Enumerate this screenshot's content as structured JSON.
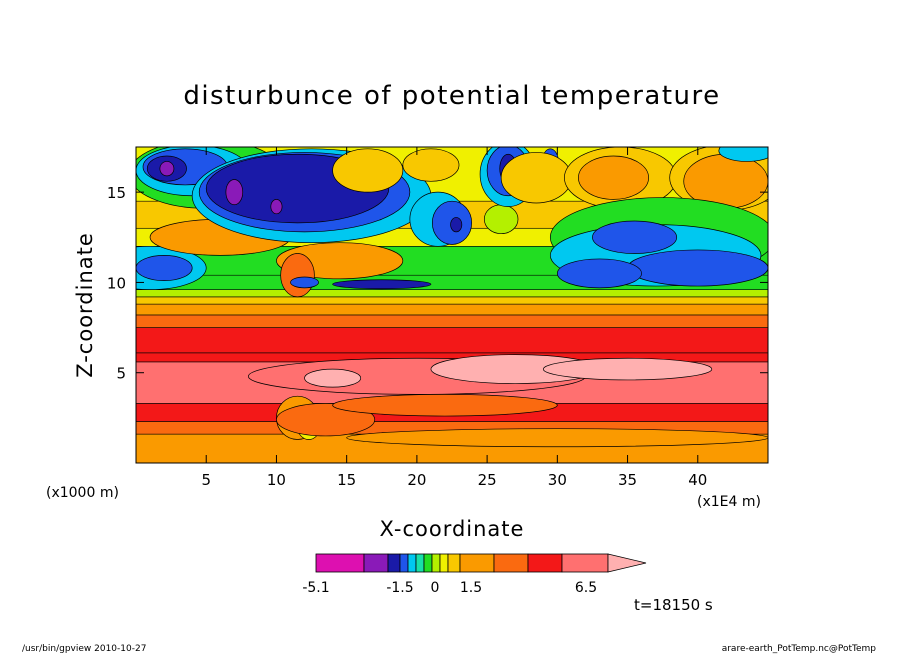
{
  "chart_data": {
    "type": "heatmap",
    "title": "disturbunce of potential temperature",
    "xlabel": "X-coordinate",
    "ylabel": "Z-coordinate",
    "xlim": [
      0,
      45
    ],
    "ylim": [
      0,
      17.5
    ],
    "x_unit_left": "(x1000 m)",
    "x_unit_right": "(x1E4 m)",
    "x_ticks": [
      5,
      10,
      15,
      20,
      25,
      30,
      35,
      40
    ],
    "x_tick_labels": [
      "5",
      "10",
      "15",
      "20",
      "25",
      "30",
      "35",
      "40"
    ],
    "y_ticks": [
      5,
      10,
      15
    ],
    "y_tick_labels": [
      "5",
      "10",
      "15"
    ],
    "colorbar": {
      "colors": [
        "#dd10b0",
        "#8a1ab8",
        "#1a1aa8",
        "#1f55ea",
        "#00c8f0",
        "#18e0a8",
        "#22dd22",
        "#b4f000",
        "#f0f000",
        "#f8c800",
        "#fa9a00",
        "#fa6a10",
        "#f31818",
        "#ff7070",
        "#ffb0b0"
      ],
      "tick_labels": [
        "-5.1",
        "-1.5",
        "0",
        "1.5",
        "6.5"
      ],
      "tick_values": [
        -5.1,
        -1.5,
        0,
        1.5,
        6.5
      ]
    },
    "bands": [
      {
        "z_bottom": 0.0,
        "z_top": 1.6,
        "color": "#fa9a00"
      },
      {
        "z_bottom": 1.6,
        "z_top": 2.3,
        "color": "#fa6a10"
      },
      {
        "z_bottom": 2.3,
        "z_top": 3.3,
        "color": "#f31818"
      },
      {
        "z_bottom": 3.3,
        "z_top": 5.6,
        "color": "#ff7070"
      },
      {
        "z_bottom": 5.6,
        "z_top": 6.1,
        "color": "#f31818"
      },
      {
        "z_bottom": 6.1,
        "z_top": 7.5,
        "color": "#f31818"
      },
      {
        "z_bottom": 7.5,
        "z_top": 8.2,
        "color": "#fa6a10"
      },
      {
        "z_bottom": 8.2,
        "z_top": 8.8,
        "color": "#fa9a00"
      },
      {
        "z_bottom": 8.8,
        "z_top": 9.2,
        "color": "#f8c800"
      },
      {
        "z_bottom": 9.2,
        "z_top": 9.6,
        "color": "#b4f000"
      },
      {
        "z_bottom": 9.6,
        "z_top": 10.4,
        "color": "#22dd22"
      },
      {
        "z_bottom": 10.4,
        "z_top": 12.0,
        "color": "#22dd22"
      },
      {
        "z_bottom": 12.0,
        "z_top": 13.0,
        "color": "#f0f000"
      },
      {
        "z_bottom": 13.0,
        "z_top": 14.5,
        "color": "#f8c800"
      },
      {
        "z_bottom": 14.5,
        "z_top": 17.5,
        "color": "#f0f000"
      }
    ],
    "blobs": [
      {
        "x": 1.0,
        "z": 10.8,
        "rx": 4.0,
        "rz": 1.2,
        "color": "#00c8f0"
      },
      {
        "x": 2.0,
        "z": 10.8,
        "rx": 2.0,
        "rz": 0.7,
        "color": "#1f55ea"
      },
      {
        "x": 6.0,
        "z": 12.5,
        "rx": 5.0,
        "rz": 1.0,
        "color": "#fa9a00"
      },
      {
        "x": 14.5,
        "z": 11.2,
        "rx": 4.5,
        "rz": 1.0,
        "color": "#fa9a00"
      },
      {
        "x": 11.5,
        "z": 10.4,
        "rx": 1.2,
        "rz": 1.2,
        "color": "#fa6a10"
      },
      {
        "x": 5.0,
        "z": 16.0,
        "rx": 5.5,
        "rz": 1.9,
        "color": "#22dd22"
      },
      {
        "x": 4.0,
        "z": 16.2,
        "rx": 4.0,
        "rz": 1.4,
        "color": "#00c8f0"
      },
      {
        "x": 3.5,
        "z": 16.4,
        "rx": 3.0,
        "rz": 1.0,
        "color": "#1f55ea"
      },
      {
        "x": 2.2,
        "z": 16.3,
        "rx": 1.4,
        "rz": 0.7,
        "color": "#1a1aa8"
      },
      {
        "x": 2.2,
        "z": 16.3,
        "rx": 0.5,
        "rz": 0.4,
        "color": "#8a1ab8"
      },
      {
        "x": 12.5,
        "z": 14.8,
        "rx": 8.5,
        "rz": 2.6,
        "color": "#00c8f0"
      },
      {
        "x": 12.0,
        "z": 15.0,
        "rx": 7.5,
        "rz": 2.2,
        "color": "#1f55ea"
      },
      {
        "x": 11.5,
        "z": 15.2,
        "rx": 6.5,
        "rz": 1.9,
        "color": "#1a1aa8"
      },
      {
        "x": 7.0,
        "z": 15.0,
        "rx": 0.6,
        "rz": 0.7,
        "color": "#8a1ab8"
      },
      {
        "x": 10.0,
        "z": 14.2,
        "rx": 0.4,
        "rz": 0.4,
        "color": "#8a1ab8"
      },
      {
        "x": 16.5,
        "z": 16.2,
        "rx": 2.5,
        "rz": 1.2,
        "color": "#f8c800"
      },
      {
        "x": 21.5,
        "z": 13.5,
        "rx": 2.0,
        "rz": 1.5,
        "color": "#00c8f0"
      },
      {
        "x": 22.5,
        "z": 13.3,
        "rx": 1.4,
        "rz": 1.2,
        "color": "#1f55ea"
      },
      {
        "x": 22.8,
        "z": 13.2,
        "rx": 0.4,
        "rz": 0.4,
        "color": "#1a1aa8"
      },
      {
        "x": 21.0,
        "z": 16.5,
        "rx": 2.0,
        "rz": 0.9,
        "color": "#f8c800"
      },
      {
        "x": 26.0,
        "z": 13.5,
        "rx": 1.2,
        "rz": 0.8,
        "color": "#b4f000"
      },
      {
        "x": 26.5,
        "z": 16.0,
        "rx": 2.0,
        "rz": 1.8,
        "color": "#00c8f0"
      },
      {
        "x": 26.5,
        "z": 16.2,
        "rx": 1.5,
        "rz": 1.4,
        "color": "#1f55ea"
      },
      {
        "x": 26.5,
        "z": 16.3,
        "rx": 0.6,
        "rz": 0.8,
        "color": "#1a1aa8"
      },
      {
        "x": 29.5,
        "z": 16.6,
        "rx": 0.6,
        "rz": 0.8,
        "color": "#1f55ea"
      },
      {
        "x": 28.5,
        "z": 15.8,
        "rx": 2.5,
        "rz": 1.4,
        "color": "#f8c800"
      },
      {
        "x": 34.5,
        "z": 15.8,
        "rx": 4.0,
        "rz": 1.7,
        "color": "#f8c800"
      },
      {
        "x": 34.0,
        "z": 15.8,
        "rx": 2.5,
        "rz": 1.2,
        "color": "#fa9a00"
      },
      {
        "x": 42.0,
        "z": 15.8,
        "rx": 4.0,
        "rz": 1.8,
        "color": "#f8c800"
      },
      {
        "x": 42.0,
        "z": 15.6,
        "rx": 3.0,
        "rz": 1.5,
        "color": "#fa9a00"
      },
      {
        "x": 43.5,
        "z": 17.3,
        "rx": 2.0,
        "rz": 0.6,
        "color": "#00c8f0"
      },
      {
        "x": 37.5,
        "z": 12.5,
        "rx": 8.0,
        "rz": 2.2,
        "color": "#22dd22"
      },
      {
        "x": 37.0,
        "z": 11.5,
        "rx": 7.5,
        "rz": 1.7,
        "color": "#00c8f0"
      },
      {
        "x": 40.0,
        "z": 10.8,
        "rx": 5.0,
        "rz": 1.0,
        "color": "#1f55ea"
      },
      {
        "x": 35.5,
        "z": 12.5,
        "rx": 3.0,
        "rz": 0.9,
        "color": "#1f55ea"
      },
      {
        "x": 33.0,
        "z": 10.5,
        "rx": 3.0,
        "rz": 0.8,
        "color": "#1f55ea"
      },
      {
        "x": 17.5,
        "z": 9.9,
        "rx": 3.5,
        "rz": 0.25,
        "color": "#1a1aa8"
      },
      {
        "x": 12.0,
        "z": 10.0,
        "rx": 1.0,
        "rz": 0.3,
        "color": "#1f55ea"
      },
      {
        "x": 20.0,
        "z": 4.8,
        "rx": 12.0,
        "rz": 1.0,
        "color": "#ff7070"
      },
      {
        "x": 27.0,
        "z": 5.2,
        "rx": 6.0,
        "rz": 0.8,
        "color": "#ffb0b0"
      },
      {
        "x": 35.0,
        "z": 5.2,
        "rx": 6.0,
        "rz": 0.6,
        "color": "#ffb0b0"
      },
      {
        "x": 14.0,
        "z": 4.7,
        "rx": 2.0,
        "rz": 0.5,
        "color": "#ffb0b0"
      },
      {
        "x": 11.5,
        "z": 2.5,
        "rx": 1.5,
        "rz": 1.2,
        "color": "#fa9a00"
      },
      {
        "x": 12.3,
        "z": 2.0,
        "rx": 0.8,
        "rz": 0.7,
        "color": "#f0f000"
      },
      {
        "x": 13.5,
        "z": 2.4,
        "rx": 3.5,
        "rz": 0.9,
        "color": "#fa6a10"
      },
      {
        "x": 22.0,
        "z": 3.2,
        "rx": 8.0,
        "rz": 0.6,
        "color": "#fa6a10"
      },
      {
        "x": 30.0,
        "z": 1.4,
        "rx": 15.0,
        "rz": 0.5,
        "color": "#fa9a00"
      }
    ],
    "annotation": "t=18150 s"
  },
  "footer": {
    "left": "/usr/bin/gpview   2010-10-27",
    "right": "arare-earth_PotTemp.nc@PotTemp"
  }
}
